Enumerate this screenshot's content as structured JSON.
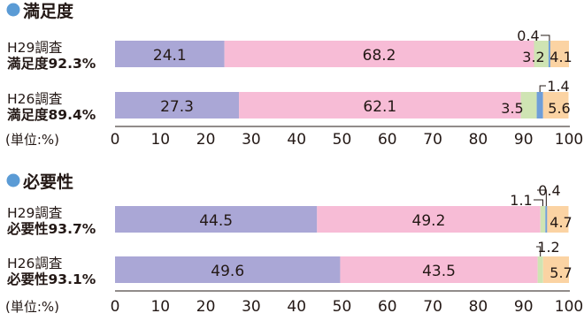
{
  "colors": {
    "bullet": "#5b9bd5",
    "segments": [
      "#aaa7d6",
      "#f7bcd6",
      "#cfe4b3",
      "#6f9ed8",
      "#fbd3a3"
    ]
  },
  "chart_data": [
    {
      "type": "bar",
      "orientation": "horizontal-stacked",
      "title": "満足度",
      "unit_label": "(単位:%)",
      "xlim": [
        0,
        100
      ],
      "xticks": [
        "0",
        "10",
        "20",
        "30",
        "40",
        "50",
        "60",
        "70",
        "80",
        "90",
        "100"
      ],
      "categories": [
        {
          "survey": "H29調査",
          "summary": "満足度92.3%"
        },
        {
          "survey": "H26調査",
          "summary": "満足度89.4%"
        }
      ],
      "segments": [
        [
          24.1,
          68.2,
          3.2,
          0.4,
          4.1
        ],
        [
          27.3,
          62.1,
          3.5,
          1.4,
          5.6
        ]
      ]
    },
    {
      "type": "bar",
      "orientation": "horizontal-stacked",
      "title": "必要性",
      "unit_label": "(単位:%)",
      "xlim": [
        0,
        100
      ],
      "xticks": [
        "0",
        "10",
        "20",
        "30",
        "40",
        "50",
        "60",
        "70",
        "80",
        "90",
        "100"
      ],
      "categories": [
        {
          "survey": "H29調査",
          "summary": "必要性93.7%"
        },
        {
          "survey": "H26調査",
          "summary": "必要性93.1%"
        }
      ],
      "segments": [
        [
          44.5,
          49.2,
          1.1,
          0.4,
          4.7
        ],
        [
          49.6,
          43.5,
          1.2,
          0.0,
          5.7
        ]
      ]
    }
  ]
}
